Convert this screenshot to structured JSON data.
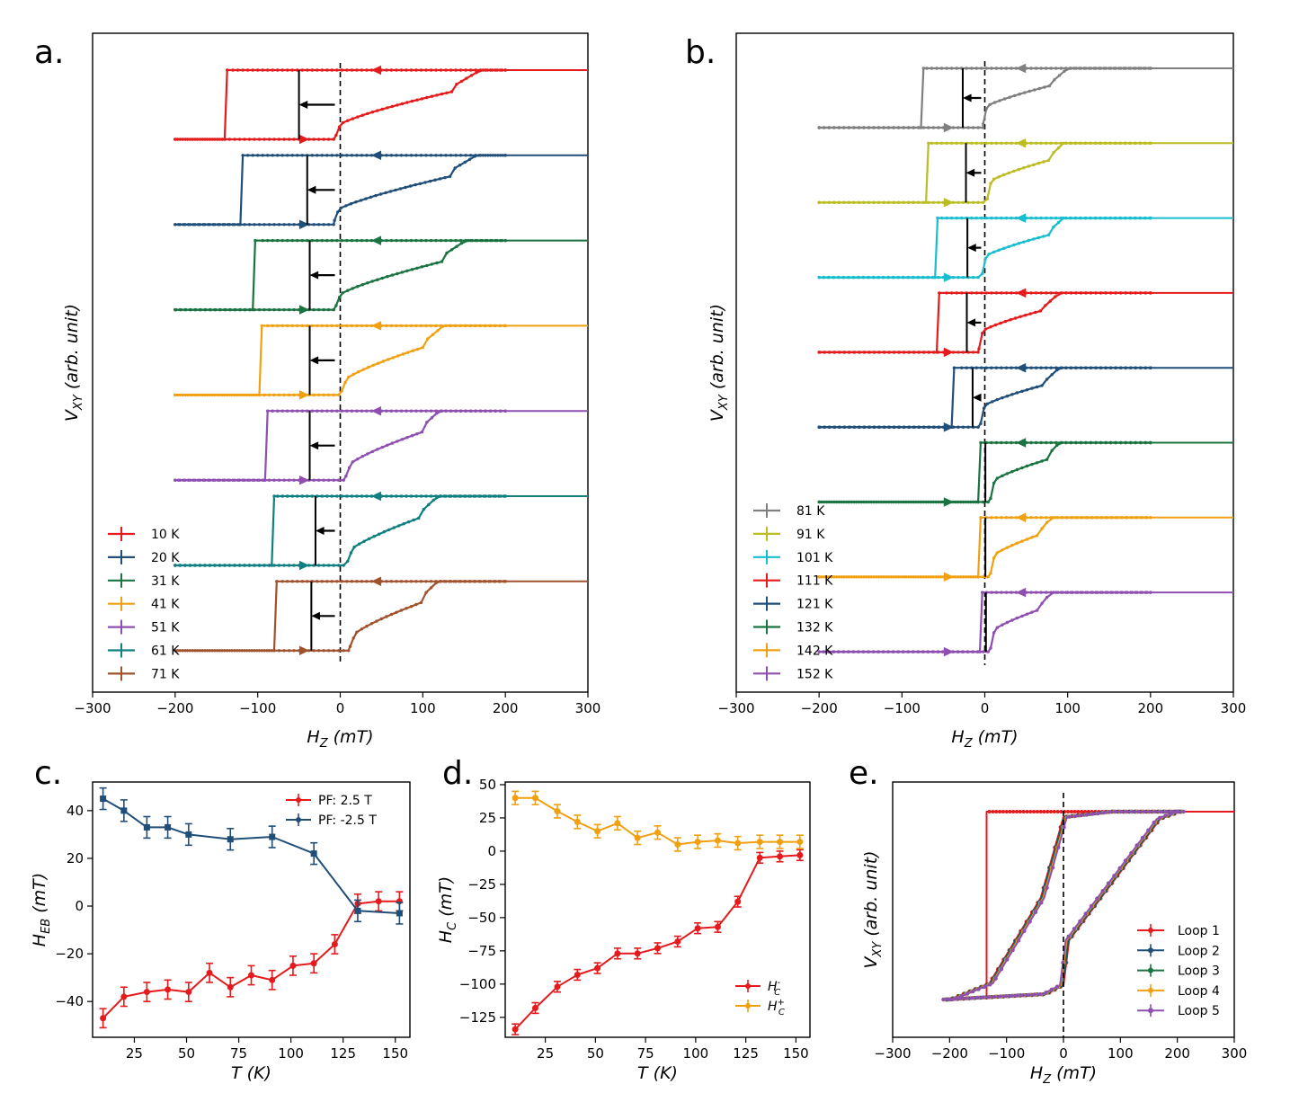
{
  "chart_data": [
    {
      "id": "a",
      "panel_label": "a.",
      "type": "line",
      "xlabel": "H_Z (mT)",
      "ylabel": "V_XY (arb. unit)",
      "xlim": [
        -300,
        300
      ],
      "xticks": [
        -300,
        -200,
        -100,
        0,
        100,
        200,
        300
      ],
      "legend_position": "lower-left",
      "series": [
        {
          "name": "10 K",
          "color": "#e41a1c",
          "hc_minus": -137,
          "hc_plus": -5,
          "h_sat": 170,
          "h_plus_end": -50,
          "kink": 155
        },
        {
          "name": "20 K",
          "color": "#1f4e79",
          "hc_minus": -118,
          "hc_plus": -7,
          "h_sat": 165,
          "h_plus_end": -40,
          "kink": 150
        },
        {
          "name": "31 K",
          "color": "#1a7340",
          "hc_minus": -103,
          "hc_plus": -5,
          "h_sat": 152,
          "h_plus_end": -37,
          "kink": 140
        },
        {
          "name": "41 K",
          "color": "#f0a010",
          "hc_minus": -95,
          "hc_plus": 2,
          "h_sat": 125,
          "h_plus_end": -37,
          "kink": 110
        },
        {
          "name": "51 K",
          "color": "#8e4fb0",
          "hc_minus": -88,
          "hc_plus": 7,
          "h_sat": 120,
          "h_plus_end": -37,
          "kink": 105
        },
        {
          "name": "61 K",
          "color": "#0f7f80",
          "hc_minus": -80,
          "hc_plus": 9,
          "h_sat": 118,
          "h_plus_end": -30,
          "kink": 105
        },
        {
          "name": "71 K",
          "color": "#a0522d",
          "hc_minus": -77,
          "hc_plus": 12,
          "h_sat": 118,
          "h_plus_end": -35,
          "kink": 105
        }
      ]
    },
    {
      "id": "b",
      "panel_label": "b.",
      "type": "line",
      "xlabel": "H_Z (mT)",
      "ylabel": "V_XY (arb. unit)",
      "xlim": [
        -300,
        300
      ],
      "xticks": [
        -300,
        -200,
        -100,
        0,
        100,
        200,
        300
      ],
      "legend_position": "lower-left",
      "series": [
        {
          "name": "81 K",
          "color": "#7f7f7f",
          "hc_minus": -74,
          "hc_plus": -2,
          "h_sat": 100
        },
        {
          "name": "91 K",
          "color": "#bcbd22",
          "hc_minus": -68,
          "hc_plus": 3,
          "h_sat": 95
        },
        {
          "name": "101 K",
          "color": "#17becf",
          "hc_minus": -57,
          "hc_plus": -3,
          "h_sat": 95
        },
        {
          "name": "111 K",
          "color": "#e41a1c",
          "hc_minus": -55,
          "hc_plus": -7,
          "h_sat": 90
        },
        {
          "name": "121 K",
          "color": "#1f4e79",
          "hc_minus": -37,
          "hc_plus": -5,
          "h_sat": 90
        },
        {
          "name": "132 K",
          "color": "#1a7340",
          "hc_minus": -5,
          "hc_plus": 7,
          "h_sat": 90
        },
        {
          "name": "142 K",
          "color": "#f0a010",
          "hc_minus": -5,
          "hc_plus": 7,
          "h_sat": 80
        },
        {
          "name": "152 K",
          "color": "#8e4fb0",
          "hc_minus": -3,
          "hc_plus": 7,
          "h_sat": 80
        }
      ]
    },
    {
      "id": "c",
      "panel_label": "c.",
      "type": "line",
      "xlabel": "T (K)",
      "ylabel": "H_EB (mT)",
      "xlim": [
        5,
        157
      ],
      "ylim": [
        -55,
        52
      ],
      "xticks": [
        25,
        50,
        75,
        100,
        125,
        150
      ],
      "yticks": [
        -40,
        -20,
        0,
        20,
        40
      ],
      "legend_position": "top-right",
      "x": [
        10,
        20,
        31,
        41,
        51,
        61,
        71,
        81,
        91,
        101,
        111,
        121,
        132,
        142,
        152
      ],
      "series": [
        {
          "name": "PF: 2.5 T",
          "color": "#e41a1c",
          "marker": "circle",
          "values": [
            -47,
            -38,
            -36,
            -35,
            -36,
            -28,
            -34,
            -29,
            -31,
            -25,
            -24,
            -16,
            1,
            2,
            2
          ],
          "error": 4
        },
        {
          "name": "PF: -2.5 T",
          "color": "#1f4e79",
          "marker": "square",
          "values": [
            45,
            40,
            33,
            33,
            30,
            null,
            28,
            null,
            29,
            null,
            22,
            null,
            -2,
            null,
            -3
          ],
          "error": 4.5
        }
      ]
    },
    {
      "id": "d",
      "panel_label": "d.",
      "type": "line",
      "xlabel": "T (K)",
      "ylabel": "H_C (mT)",
      "xlim": [
        5,
        157
      ],
      "ylim": [
        -140,
        52
      ],
      "xticks": [
        25,
        50,
        75,
        100,
        125,
        150
      ],
      "yticks": [
        -125,
        -100,
        -75,
        -50,
        -25,
        0,
        25,
        50
      ],
      "legend_position": "bottom-right",
      "x": [
        10,
        20,
        31,
        41,
        51,
        61,
        71,
        81,
        91,
        101,
        111,
        121,
        132,
        142,
        152
      ],
      "series": [
        {
          "name": "H_C^-",
          "color": "#e41a1c",
          "values": [
            -134,
            -118,
            -102,
            -93,
            -88,
            -77,
            -77,
            -73,
            -68,
            -58,
            -57,
            -38,
            -5,
            -4,
            -3
          ],
          "error": 4
        },
        {
          "name": "H_C^+",
          "color": "#f0a010",
          "values": [
            40,
            40,
            30,
            22,
            15,
            21,
            10,
            14,
            5,
            7,
            8,
            6,
            7,
            7,
            7
          ],
          "error": 5
        }
      ]
    },
    {
      "id": "e",
      "panel_label": "e.",
      "type": "line",
      "xlabel": "H_Z (mT)",
      "ylabel": "V_XY (arb. unit)",
      "xlim": [
        -300,
        300
      ],
      "xticks": [
        -300,
        -200,
        -100,
        0,
        100,
        200,
        300
      ],
      "legend_position": "lower-right",
      "series": [
        {
          "name": "Loop 1",
          "color": "#e41a1c"
        },
        {
          "name": "Loop 2",
          "color": "#1f4e79"
        },
        {
          "name": "Loop 3",
          "color": "#1a7340"
        },
        {
          "name": "Loop 4",
          "color": "#f0a010"
        },
        {
          "name": "Loop 5",
          "color": "#8e4fb0"
        }
      ]
    }
  ]
}
